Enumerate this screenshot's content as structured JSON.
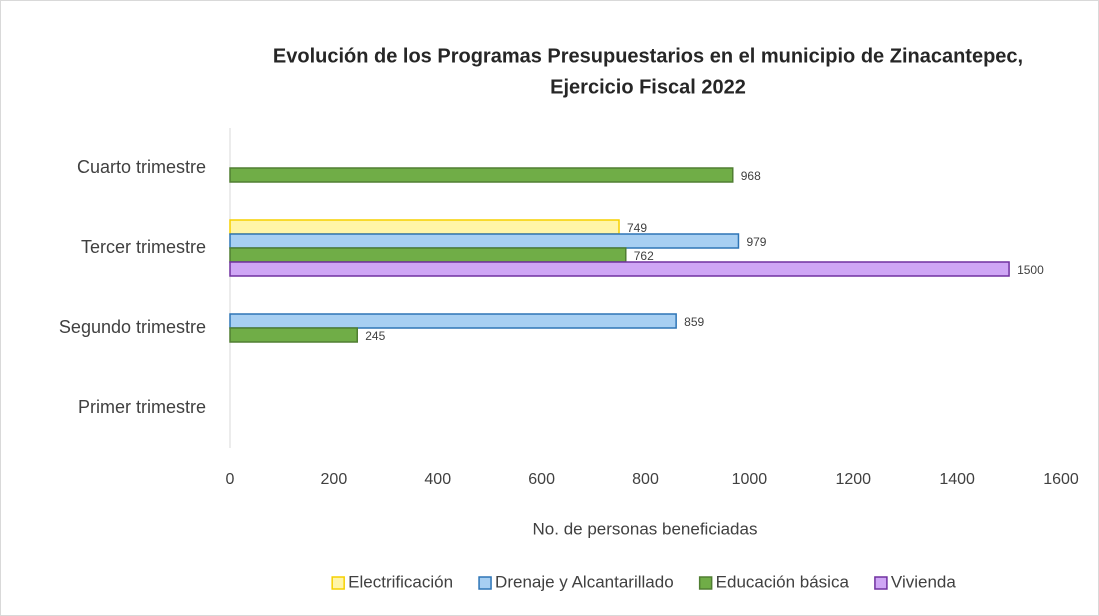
{
  "chart_data": {
    "type": "hbar",
    "title": [
      "Evolución de los Programas Presupuestarios en el municipio de Zinacantepec,",
      "Ejercicio Fiscal 2022"
    ],
    "xlabel": "No. de personas beneficiadas",
    "categories": [
      "Primer trimestre",
      "Segundo trimestre",
      "Tercer trimestre",
      "Cuarto trimestre"
    ],
    "series": [
      {
        "name": "Electrificación",
        "color": "#FFF5A8",
        "edge": "#F5D000",
        "values": [
          null,
          null,
          749,
          null
        ]
      },
      {
        "name": "Drenaje y Alcantarillado",
        "color": "#A7CFF2",
        "edge": "#2E75B6",
        "values": [
          null,
          859,
          979,
          null
        ]
      },
      {
        "name": "Educación básica",
        "color": "#70AD47",
        "edge": "#507E32",
        "values": [
          null,
          245,
          762,
          968
        ]
      },
      {
        "name": "Vivienda",
        "color": "#CFA6F5",
        "edge": "#7030A0",
        "values": [
          null,
          null,
          1500,
          null
        ]
      }
    ],
    "xlim": [
      0,
      1600
    ],
    "xticks": [
      0,
      200,
      400,
      600,
      800,
      1000,
      1200,
      1400,
      1600
    ],
    "legend": "bottom"
  }
}
